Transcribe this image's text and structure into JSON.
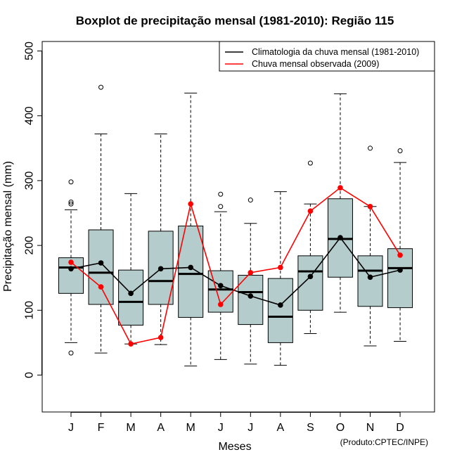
{
  "chart_data": {
    "type": "boxplot",
    "title": "Boxplot de precipitação mensal (1981-2010): Região 115",
    "xlabel": "Meses",
    "ylabel": "Precipitação mensal (mm)",
    "ylim": [
      -60,
      515
    ],
    "yticks": [
      0,
      100,
      200,
      300,
      400,
      500
    ],
    "categories": [
      "J",
      "F",
      "M",
      "A",
      "M",
      "J",
      "J",
      "A",
      "S",
      "O",
      "N",
      "D"
    ],
    "boxes": [
      {
        "whisker_low": 50,
        "q1": 126,
        "median": 166,
        "q3": 181,
        "whisker_high": 255,
        "outliers": [
          34,
          264,
          267,
          298
        ]
      },
      {
        "whisker_low": 34,
        "q1": 109,
        "median": 158,
        "q3": 224,
        "whisker_high": 372,
        "outliers": [
          444
        ]
      },
      {
        "whisker_low": 48,
        "q1": 77,
        "median": 113,
        "q3": 162,
        "whisker_high": 280,
        "outliers": []
      },
      {
        "whisker_low": 47,
        "q1": 109,
        "median": 145,
        "q3": 222,
        "whisker_high": 372,
        "outliers": []
      },
      {
        "whisker_low": 14,
        "q1": 89,
        "median": 156,
        "q3": 230,
        "whisker_high": 435,
        "outliers": []
      },
      {
        "whisker_low": 24,
        "q1": 97,
        "median": 132,
        "q3": 161,
        "whisker_high": 252,
        "outliers": [
          260,
          279
        ]
      },
      {
        "whisker_low": 17,
        "q1": 78,
        "median": 128,
        "q3": 154,
        "whisker_high": 234,
        "outliers": [
          270
        ]
      },
      {
        "whisker_low": 15,
        "q1": 50,
        "median": 90,
        "q3": 149,
        "whisker_high": 283,
        "outliers": []
      },
      {
        "whisker_low": 64,
        "q1": 100,
        "median": 160,
        "q3": 184,
        "whisker_high": 264,
        "outliers": [
          327
        ]
      },
      {
        "whisker_low": 97,
        "q1": 151,
        "median": 210,
        "q3": 272,
        "whisker_high": 434,
        "outliers": []
      },
      {
        "whisker_low": 45,
        "q1": 106,
        "median": 161,
        "q3": 184,
        "whisker_high": 260,
        "outliers": [
          350
        ]
      },
      {
        "whisker_low": 52,
        "q1": 104,
        "median": 165,
        "q3": 195,
        "whisker_high": 328,
        "outliers": [
          346
        ]
      }
    ],
    "series": [
      {
        "name": "Climatologia da chuva mensal (1981-2010)",
        "color": "#000000",
        "values": [
          164,
          173,
          126,
          164,
          166,
          138,
          122,
          108,
          152,
          212,
          151,
          162
        ]
      },
      {
        "name": "Chuva mensal observada (2009)",
        "color": "#ff0000",
        "values": [
          174,
          136,
          48,
          58,
          264,
          109,
          158,
          166,
          253,
          289,
          260,
          185
        ]
      }
    ],
    "legend_position": "top-right",
    "box_color": "#b4cccb",
    "credit": "(Produto:CPTEC/INPE)"
  }
}
